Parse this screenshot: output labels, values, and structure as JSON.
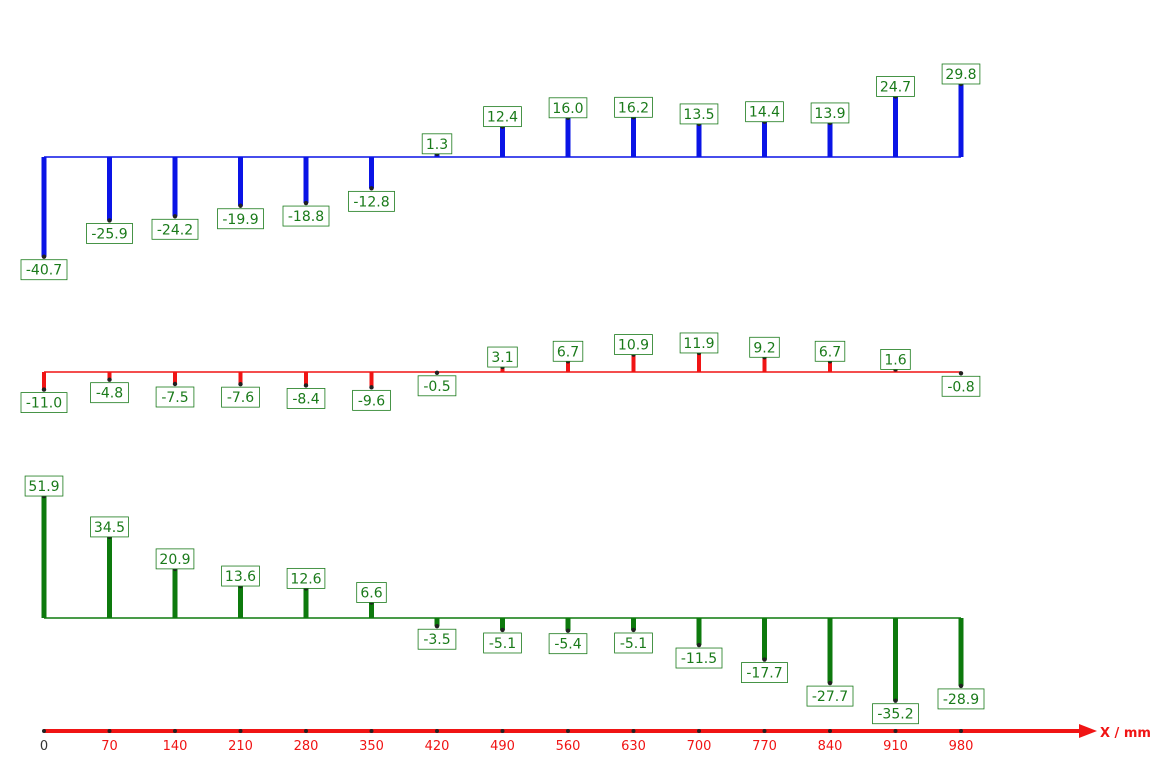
{
  "chart_data": {
    "type": "bar",
    "x": [
      0,
      70,
      140,
      210,
      280,
      350,
      420,
      490,
      560,
      630,
      700,
      770,
      840,
      910,
      980
    ],
    "xlabel": "X / mm",
    "series": [
      {
        "color": "#0a14e6",
        "values": [
          -40.7,
          -25.9,
          -24.2,
          -19.9,
          -18.8,
          -12.8,
          1.3,
          12.4,
          16.0,
          16.2,
          13.5,
          14.4,
          13.9,
          24.7,
          29.8
        ]
      },
      {
        "color": "#f01414",
        "values": [
          -11.0,
          -4.8,
          -7.5,
          -7.6,
          -8.4,
          -9.6,
          -0.5,
          3.1,
          6.7,
          10.9,
          11.9,
          9.2,
          6.7,
          1.6,
          -0.8
        ]
      },
      {
        "color": "#0d7a0d",
        "values": [
          51.9,
          34.5,
          20.9,
          13.6,
          12.6,
          6.6,
          -3.5,
          -5.1,
          -5.4,
          -5.1,
          -11.5,
          -17.7,
          -27.7,
          -35.2,
          -28.9
        ]
      }
    ]
  },
  "style": {
    "label_text_color": "#1a7a1a",
    "axis_color": "#f01414",
    "x_first_tick_color": "#333333"
  }
}
